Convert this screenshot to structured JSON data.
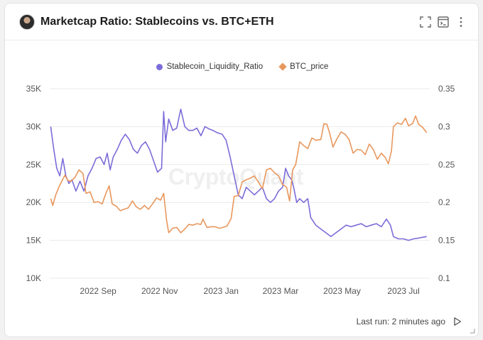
{
  "header": {
    "title": "Marketcap Ratio: Stablecoins vs. BTC+ETH",
    "icons": [
      "fullscreen-icon",
      "console-icon",
      "more-vertical-icon"
    ]
  },
  "footer": {
    "last_run": "Last run: 2 minutes ago"
  },
  "watermark": "CryptoQuant",
  "colors": {
    "series1": "#7b6cd9",
    "series2": "#e8975d",
    "grid": "#e9e9e9",
    "text": "#555555"
  },
  "chart_data": {
    "type": "line",
    "title": "Marketcap Ratio: Stablecoins vs. BTC+ETH",
    "legend_position": "top-center",
    "grid": true,
    "x_ticks": [
      "2022 Sep",
      "2022 Nov",
      "2023 Jan",
      "2023 Mar",
      "2023 May",
      "2023 Jul"
    ],
    "x_tick_dates": [
      "2022-09-01",
      "2022-11-01",
      "2023-01-01",
      "2023-03-01",
      "2023-05-01",
      "2023-07-01"
    ],
    "x_range": [
      "2022-07-15",
      "2023-07-27"
    ],
    "y_left": {
      "label": "",
      "ticks": [
        "10K",
        "15K",
        "20K",
        "25K",
        "30K",
        "35K"
      ],
      "range": [
        10000,
        35000
      ]
    },
    "y_right": {
      "label": "",
      "ticks": [
        "0.1",
        "0.15",
        "0.2",
        "0.25",
        "0.3",
        "0.35"
      ],
      "range": [
        0.1,
        0.35
      ]
    },
    "series": [
      {
        "name": "Stablecoin_Liquidity_Ratio",
        "axis": "right",
        "points": [
          [
            "2022-07-16",
            0.3
          ],
          [
            "2022-07-19",
            0.27
          ],
          [
            "2022-07-22",
            0.245
          ],
          [
            "2022-07-25",
            0.235
          ],
          [
            "2022-07-28",
            0.258
          ],
          [
            "2022-07-31",
            0.235
          ],
          [
            "2022-08-03",
            0.225
          ],
          [
            "2022-08-06",
            0.23
          ],
          [
            "2022-08-10",
            0.215
          ],
          [
            "2022-08-14",
            0.228
          ],
          [
            "2022-08-18",
            0.215
          ],
          [
            "2022-08-22",
            0.235
          ],
          [
            "2022-08-26",
            0.245
          ],
          [
            "2022-08-30",
            0.258
          ],
          [
            "2022-09-03",
            0.26
          ],
          [
            "2022-09-07",
            0.25
          ],
          [
            "2022-09-10",
            0.265
          ],
          [
            "2022-09-13",
            0.243
          ],
          [
            "2022-09-16",
            0.26
          ],
          [
            "2022-09-20",
            0.27
          ],
          [
            "2022-09-24",
            0.282
          ],
          [
            "2022-09-28",
            0.29
          ],
          [
            "2022-10-02",
            0.283
          ],
          [
            "2022-10-06",
            0.27
          ],
          [
            "2022-10-10",
            0.265
          ],
          [
            "2022-10-14",
            0.275
          ],
          [
            "2022-10-18",
            0.28
          ],
          [
            "2022-10-22",
            0.27
          ],
          [
            "2022-10-26",
            0.255
          ],
          [
            "2022-10-30",
            0.24
          ],
          [
            "2022-11-03",
            0.245
          ],
          [
            "2022-11-05",
            0.32
          ],
          [
            "2022-11-07",
            0.28
          ],
          [
            "2022-11-10",
            0.31
          ],
          [
            "2022-11-14",
            0.295
          ],
          [
            "2022-11-18",
            0.298
          ],
          [
            "2022-11-22",
            0.323
          ],
          [
            "2022-11-26",
            0.3
          ],
          [
            "2022-11-30",
            0.295
          ],
          [
            "2022-12-04",
            0.295
          ],
          [
            "2022-12-08",
            0.298
          ],
          [
            "2022-12-12",
            0.288
          ],
          [
            "2022-12-16",
            0.3
          ],
          [
            "2022-12-20",
            0.297
          ],
          [
            "2022-12-24",
            0.295
          ],
          [
            "2022-12-28",
            0.292
          ],
          [
            "2023-01-02",
            0.29
          ],
          [
            "2023-01-06",
            0.282
          ],
          [
            "2023-01-10",
            0.26
          ],
          [
            "2023-01-14",
            0.235
          ],
          [
            "2023-01-18",
            0.21
          ],
          [
            "2023-01-22",
            0.205
          ],
          [
            "2023-01-26",
            0.22
          ],
          [
            "2023-01-30",
            0.215
          ],
          [
            "2023-02-03",
            0.21
          ],
          [
            "2023-02-07",
            0.215
          ],
          [
            "2023-02-11",
            0.22
          ],
          [
            "2023-02-15",
            0.205
          ],
          [
            "2023-02-19",
            0.2
          ],
          [
            "2023-02-23",
            0.205
          ],
          [
            "2023-02-27",
            0.215
          ],
          [
            "2023-03-03",
            0.22
          ],
          [
            "2023-03-06",
            0.245
          ],
          [
            "2023-03-09",
            0.235
          ],
          [
            "2023-03-12",
            0.23
          ],
          [
            "2023-03-14",
            0.22
          ],
          [
            "2023-03-17",
            0.2
          ],
          [
            "2023-03-20",
            0.205
          ],
          [
            "2023-03-24",
            0.2
          ],
          [
            "2023-03-28",
            0.205
          ],
          [
            "2023-03-31",
            0.18
          ],
          [
            "2023-04-05",
            0.17
          ],
          [
            "2023-04-10",
            0.165
          ],
          [
            "2023-04-15",
            0.16
          ],
          [
            "2023-04-20",
            0.155
          ],
          [
            "2023-04-25",
            0.16
          ],
          [
            "2023-04-30",
            0.165
          ],
          [
            "2023-05-05",
            0.17
          ],
          [
            "2023-05-10",
            0.168
          ],
          [
            "2023-05-15",
            0.17
          ],
          [
            "2023-05-20",
            0.172
          ],
          [
            "2023-05-25",
            0.168
          ],
          [
            "2023-05-30",
            0.17
          ],
          [
            "2023-06-04",
            0.172
          ],
          [
            "2023-06-09",
            0.168
          ],
          [
            "2023-06-14",
            0.178
          ],
          [
            "2023-06-18",
            0.17
          ],
          [
            "2023-06-21",
            0.155
          ],
          [
            "2023-06-26",
            0.152
          ],
          [
            "2023-07-01",
            0.152
          ],
          [
            "2023-07-06",
            0.15
          ],
          [
            "2023-07-11",
            0.152
          ],
          [
            "2023-07-16",
            0.153
          ],
          [
            "2023-07-20",
            0.154
          ],
          [
            "2023-07-24",
            0.155
          ]
        ]
      },
      {
        "name": "BTC_price",
        "axis": "left",
        "points": [
          [
            "2022-07-16",
            20500
          ],
          [
            "2022-07-18",
            19600
          ],
          [
            "2022-07-21",
            21000
          ],
          [
            "2022-07-24",
            22000
          ],
          [
            "2022-07-27",
            22800
          ],
          [
            "2022-07-30",
            23600
          ],
          [
            "2022-08-02",
            22900
          ],
          [
            "2022-08-05",
            22800
          ],
          [
            "2022-08-09",
            23300
          ],
          [
            "2022-08-13",
            24300
          ],
          [
            "2022-08-17",
            23800
          ],
          [
            "2022-08-20",
            21200
          ],
          [
            "2022-08-24",
            21400
          ],
          [
            "2022-08-28",
            20000
          ],
          [
            "2022-09-01",
            20100
          ],
          [
            "2022-09-05",
            19800
          ],
          [
            "2022-09-09",
            21300
          ],
          [
            "2022-09-12",
            22200
          ],
          [
            "2022-09-15",
            19800
          ],
          [
            "2022-09-19",
            19500
          ],
          [
            "2022-09-23",
            18900
          ],
          [
            "2022-09-27",
            19100
          ],
          [
            "2022-10-01",
            19300
          ],
          [
            "2022-10-05",
            20200
          ],
          [
            "2022-10-09",
            19400
          ],
          [
            "2022-10-13",
            19100
          ],
          [
            "2022-10-17",
            19600
          ],
          [
            "2022-10-21",
            19100
          ],
          [
            "2022-10-25",
            19800
          ],
          [
            "2022-10-29",
            20600
          ],
          [
            "2022-11-02",
            20300
          ],
          [
            "2022-11-05",
            21200
          ],
          [
            "2022-11-08",
            17600
          ],
          [
            "2022-11-10",
            16000
          ],
          [
            "2022-11-14",
            16600
          ],
          [
            "2022-11-18",
            16700
          ],
          [
            "2022-11-22",
            16000
          ],
          [
            "2022-11-26",
            16500
          ],
          [
            "2022-11-30",
            17100
          ],
          [
            "2022-12-04",
            17000
          ],
          [
            "2022-12-08",
            17200
          ],
          [
            "2022-12-12",
            17100
          ],
          [
            "2022-12-14",
            17800
          ],
          [
            "2022-12-18",
            16700
          ],
          [
            "2022-12-22",
            16800
          ],
          [
            "2022-12-26",
            16800
          ],
          [
            "2022-12-30",
            16600
          ],
          [
            "2023-01-03",
            16700
          ],
          [
            "2023-01-07",
            16900
          ],
          [
            "2023-01-11",
            17900
          ],
          [
            "2023-01-14",
            20800
          ],
          [
            "2023-01-18",
            20900
          ],
          [
            "2023-01-22",
            22700
          ],
          [
            "2023-01-26",
            23000
          ],
          [
            "2023-01-30",
            23200
          ],
          [
            "2023-02-03",
            23500
          ],
          [
            "2023-02-07",
            22700
          ],
          [
            "2023-02-11",
            21800
          ],
          [
            "2023-02-15",
            24300
          ],
          [
            "2023-02-19",
            24500
          ],
          [
            "2023-02-23",
            23900
          ],
          [
            "2023-02-27",
            23500
          ],
          [
            "2023-03-03",
            22400
          ],
          [
            "2023-03-07",
            22000
          ],
          [
            "2023-03-10",
            20200
          ],
          [
            "2023-03-13",
            24300
          ],
          [
            "2023-03-16",
            25000
          ],
          [
            "2023-03-20",
            28000
          ],
          [
            "2023-03-24",
            27500
          ],
          [
            "2023-03-28",
            27100
          ],
          [
            "2023-04-01",
            28500
          ],
          [
            "2023-04-05",
            28200
          ],
          [
            "2023-04-10",
            28300
          ],
          [
            "2023-04-13",
            30400
          ],
          [
            "2023-04-16",
            30300
          ],
          [
            "2023-04-19",
            29000
          ],
          [
            "2023-04-22",
            27300
          ],
          [
            "2023-04-26",
            28400
          ],
          [
            "2023-04-30",
            29300
          ],
          [
            "2023-05-04",
            29000
          ],
          [
            "2023-05-08",
            28300
          ],
          [
            "2023-05-12",
            26500
          ],
          [
            "2023-05-16",
            27000
          ],
          [
            "2023-05-20",
            26900
          ],
          [
            "2023-05-24",
            26300
          ],
          [
            "2023-05-28",
            27700
          ],
          [
            "2023-06-01",
            27000
          ],
          [
            "2023-06-05",
            25700
          ],
          [
            "2023-06-09",
            26500
          ],
          [
            "2023-06-13",
            25900
          ],
          [
            "2023-06-16",
            25100
          ],
          [
            "2023-06-19",
            26800
          ],
          [
            "2023-06-21",
            30000
          ],
          [
            "2023-06-25",
            30500
          ],
          [
            "2023-06-29",
            30300
          ],
          [
            "2023-07-03",
            31100
          ],
          [
            "2023-07-06",
            30100
          ],
          [
            "2023-07-10",
            30400
          ],
          [
            "2023-07-13",
            31400
          ],
          [
            "2023-07-16",
            30300
          ],
          [
            "2023-07-20",
            29900
          ],
          [
            "2023-07-24",
            29200
          ]
        ]
      }
    ]
  }
}
